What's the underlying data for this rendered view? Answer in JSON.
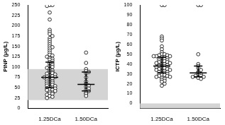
{
  "chart_data": [
    {
      "type": "scatter",
      "y_label": "PINP (µg/L)",
      "categories": [
        "1.25DCa",
        "1.50DCa"
      ],
      "values": [
        [
          250,
          250,
          248,
          232,
          215,
          190,
          185,
          180,
          175,
          170,
          165,
          160,
          155,
          150,
          148,
          145,
          140,
          135,
          130,
          128,
          125,
          122,
          120,
          118,
          115,
          112,
          110,
          108,
          105,
          102,
          100,
          98,
          95,
          92,
          90,
          88,
          86,
          85,
          84,
          82,
          80,
          78,
          77,
          76,
          75,
          74,
          72,
          70,
          68,
          66,
          65,
          63,
          62,
          60,
          58,
          57,
          55,
          54,
          52,
          50,
          49,
          48,
          46,
          45,
          44,
          42,
          40,
          38,
          36,
          35,
          33,
          30,
          28,
          25
        ],
        [
          135,
          110,
          95,
          90,
          88,
          85,
          75,
          65,
          60,
          58,
          55,
          52,
          48,
          45,
          42,
          38,
          35,
          30
        ]
      ],
      "medians": [
        75,
        58
      ],
      "error_low": [
        50,
        42
      ],
      "error_high": [
        112,
        88
      ],
      "reference_range": [
        20,
        95
      ],
      "color": "#000000",
      "marker": "open_circle",
      "ylim": [
        0,
        250
      ],
      "yticks": [
        0,
        25,
        50,
        75,
        100,
        125,
        150,
        175,
        200,
        225,
        250
      ],
      "grid": false
    },
    {
      "type": "scatter",
      "y_label": "ICTP (µg/L)",
      "categories": [
        "1.25DCa",
        "1.50DCa"
      ],
      "values": [
        [
          100,
          100,
          68,
          66,
          64,
          58,
          55,
          52,
          50,
          50,
          49,
          49,
          48,
          48,
          48,
          47,
          47,
          46,
          46,
          45,
          45,
          44,
          44,
          43,
          43,
          42,
          42,
          41,
          41,
          40,
          40,
          39,
          39,
          38,
          38,
          38,
          37,
          37,
          36,
          36,
          35,
          35,
          34,
          34,
          33,
          33,
          32,
          32,
          31,
          31,
          30,
          30,
          29,
          29,
          28,
          28,
          27,
          27,
          26,
          25,
          24,
          23,
          22,
          20,
          18
        ],
        [
          100,
          100,
          50,
          40,
          38,
          36,
          34,
          32,
          31,
          30,
          29,
          28,
          28,
          27,
          27,
          26,
          25
        ]
      ],
      "medians": [
        38,
        31
      ],
      "error_low": [
        31,
        27
      ],
      "error_high": [
        47,
        38
      ],
      "reference_range": [
        -5,
        0
      ],
      "color": "#000000",
      "marker": "open_circle",
      "ylim": [
        -5,
        100
      ],
      "yticks": [
        0,
        10,
        20,
        30,
        40,
        50,
        60,
        70,
        80,
        90,
        100
      ],
      "grid": false
    }
  ]
}
